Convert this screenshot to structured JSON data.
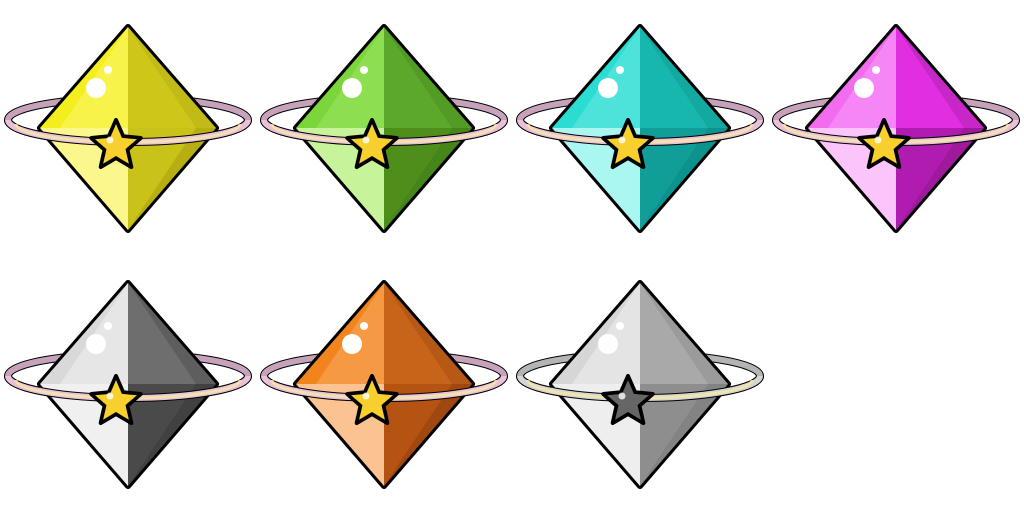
{
  "gems": [
    {
      "variant": "yellow",
      "state": "available",
      "colors": {
        "top_left": "#F4EE1E",
        "top_right": "#CFC61A",
        "bottom_left": "#FBF78C",
        "bottom_right": "#C9C218",
        "facet_light": "#FFFCA0",
        "facet_dark": "#A79E0E"
      },
      "ring_color": "#E9C0DA",
      "star_color": "#F7D02E"
    },
    {
      "variant": "green",
      "state": "available",
      "colors": {
        "top_left": "#7AD63A",
        "top_right": "#5BA82A",
        "bottom_left": "#C7F39A",
        "bottom_right": "#4E8F1C",
        "facet_light": "#B2EE7C",
        "facet_dark": "#3F7E17"
      },
      "ring_color": "#E9C0DA",
      "star_color": "#F7D02E"
    },
    {
      "variant": "cyan",
      "state": "available",
      "colors": {
        "top_left": "#2ADCD2",
        "top_right": "#17B7AE",
        "bottom_left": "#AAF7F2",
        "bottom_right": "#119E98",
        "facet_light": "#8EF1EC",
        "facet_dark": "#0B8B86"
      },
      "ring_color": "#E9C0DA",
      "star_color": "#F7D02E"
    },
    {
      "variant": "magenta",
      "state": "available",
      "colors": {
        "top_left": "#F26CF0",
        "top_right": "#E02EE0",
        "bottom_left": "#FBC4FA",
        "bottom_right": "#B11CB0",
        "facet_light": "#FFB4FE",
        "facet_dark": "#8F178E"
      },
      "ring_color": "#E9C0DA",
      "star_color": "#F7D02E"
    },
    {
      "variant": "black",
      "state": "available",
      "colors": {
        "top_left": "#D9D9D9",
        "top_right": "#6E6E6E",
        "bottom_left": "#F0F0F0",
        "bottom_right": "#4A4A4A",
        "facet_light": "#FFFFFF",
        "facet_dark": "#3A3A3A"
      },
      "ring_color": "#E9C0DA",
      "star_color": "#F7D02E"
    },
    {
      "variant": "orange",
      "state": "available",
      "colors": {
        "top_left": "#F2841E",
        "top_right": "#C8641A",
        "bottom_left": "#FAC391",
        "bottom_right": "#B55312",
        "facet_light": "#FFC08A",
        "facet_dark": "#8E3F0C"
      },
      "ring_color": "#E9C0DA",
      "star_color": "#F7D02E"
    },
    {
      "variant": "grey",
      "state": "locked",
      "colors": {
        "top_left": "#D6D6D6",
        "top_right": "#A9A9A9",
        "bottom_left": "#EEEEEE",
        "bottom_right": "#8E8E8E",
        "facet_light": "#FFFFFF",
        "facet_dark": "#7A7A7A"
      },
      "ring_color": "#D4D4D4",
      "star_color": "#666666"
    }
  ]
}
